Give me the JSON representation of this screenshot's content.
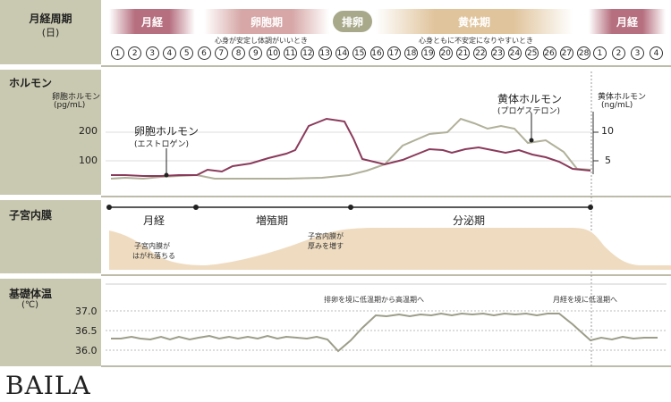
{
  "rows": {
    "cycle": {
      "title": "月経周期",
      "sub": "(日)"
    },
    "hormone": {
      "title": "ホルモン",
      "sub1": "卵胞ホルモン",
      "sub2": "(pg/mL)"
    },
    "lining": {
      "title": "子宮内膜"
    },
    "temp": {
      "title": "基礎体温",
      "sub": "(℃)"
    }
  },
  "phases": {
    "menstrual": "月経",
    "follicular": "卵胞期",
    "ovulation": "排卵",
    "luteal": "黄体期",
    "menstrual2": "月経"
  },
  "phase_notes": {
    "stable": "心身が安定し体調がいいとき",
    "unstable": "心身ともに不安定になりやすいとき"
  },
  "days": [
    "1",
    "2",
    "3",
    "4",
    "5",
    "6",
    "7",
    "8",
    "9",
    "10",
    "11",
    "12",
    "13",
    "14",
    "15",
    "16",
    "17",
    "18",
    "19",
    "20",
    "21",
    "22",
    "23",
    "24",
    "25",
    "26",
    "27",
    "28",
    "1",
    "2",
    "3",
    "4"
  ],
  "hormone": {
    "left_ticks": [
      "200",
      "100"
    ],
    "right_unit1": "黄体ホルモン",
    "right_unit2": "(ng/mL)",
    "right_ticks": [
      "10",
      "5"
    ],
    "estrogen_label": "卵胞ホルモン",
    "estrogen_sub": "(エストロゲン)",
    "progesterone_label": "黄体ホルモン",
    "progesterone_sub": "(プロゲステロン)",
    "estrogen_color": "#8a3a5a",
    "progesterone_color": "#b0b09a"
  },
  "lining": {
    "stage1": "月経",
    "stage2": "増殖期",
    "stage3": "分泌期",
    "note1a": "子宮内膜が",
    "note1b": "はがれ落ちる",
    "note2a": "子宮内膜が",
    "note2b": "厚みを増す",
    "fill_color": "#efdcc0"
  },
  "temp": {
    "ticks": [
      "37.0",
      "36.5",
      "36.0"
    ],
    "note1": "排卵を境に低温期から高温期へ",
    "note2": "月経を境に低温期へ",
    "line_color": "#9d9d8a"
  },
  "logo": "BAILA"
}
